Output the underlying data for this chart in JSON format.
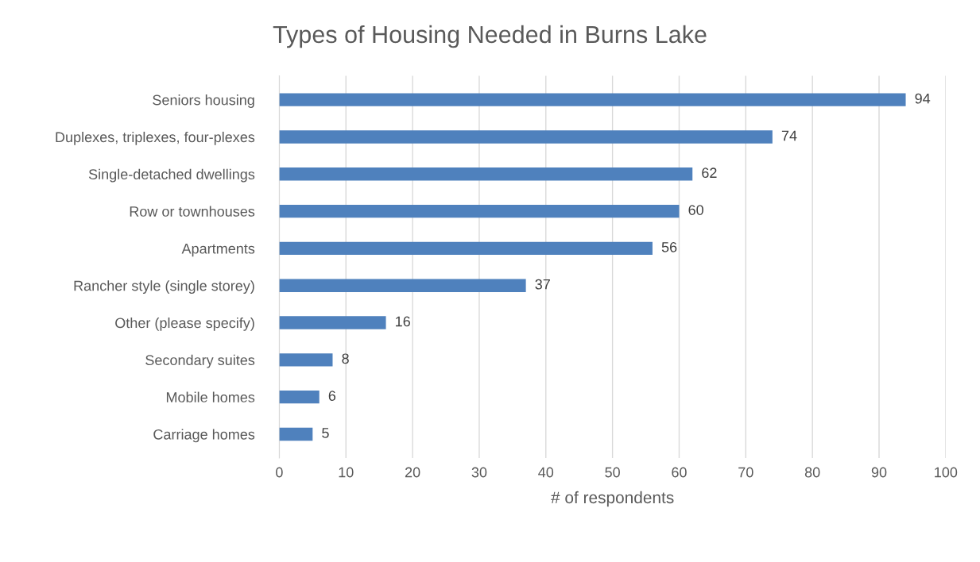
{
  "chart_data": {
    "type": "bar",
    "orientation": "horizontal",
    "title": "Types of Housing Needed in Burns Lake",
    "xlabel": "# of respondents",
    "categories": [
      "Seniors housing",
      "Duplexes, triplexes, four-plexes",
      "Single-detached dwellings",
      "Row or townhouses",
      "Apartments",
      "Rancher style (single storey)",
      "Other (please specify)",
      "Secondary suites",
      "Mobile homes",
      "Carriage homes"
    ],
    "values": [
      94,
      74,
      62,
      60,
      56,
      37,
      16,
      8,
      6,
      5
    ],
    "color": "#4f81bd",
    "xlim": [
      0,
      100
    ],
    "xticks": [
      0,
      10,
      20,
      30,
      40,
      50,
      60,
      70,
      80,
      90,
      100
    ],
    "grid": "x",
    "data_labels": true
  }
}
